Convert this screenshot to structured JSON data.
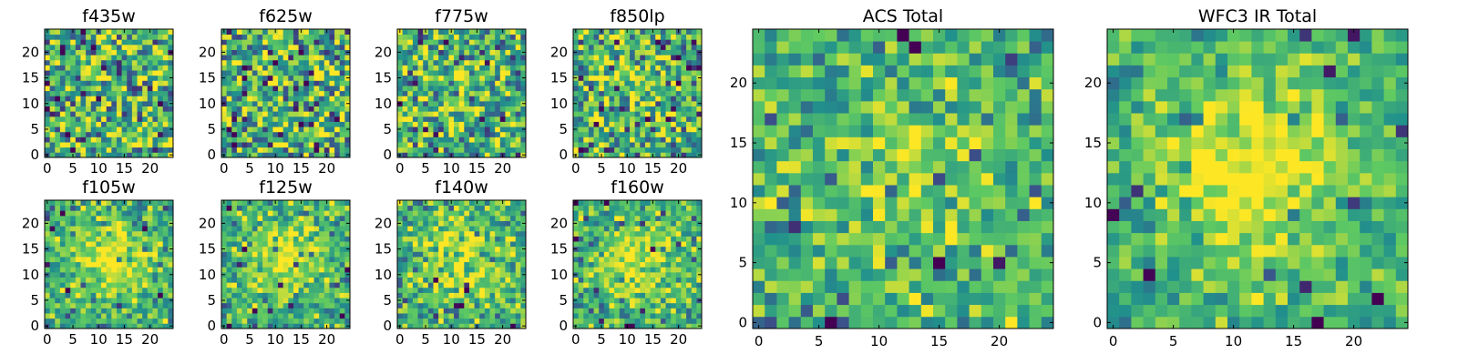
{
  "chart_data": [
    {
      "type": "heatmap",
      "title": "f435w",
      "grid_size": 25,
      "seed": 11,
      "peak": 0.05,
      "noise": 1.0,
      "xticks": [
        "0",
        "5",
        "10",
        "15",
        "20"
      ],
      "yticks": [
        "0",
        "5",
        "10",
        "15",
        "20"
      ],
      "ylim": [
        0,
        24
      ],
      "xlim": [
        0,
        24
      ]
    },
    {
      "type": "heatmap",
      "title": "f625w",
      "grid_size": 25,
      "seed": 23,
      "peak": 0.1,
      "noise": 1.0,
      "xticks": [
        "0",
        "5",
        "10",
        "15",
        "20"
      ],
      "yticks": [
        "0",
        "5",
        "10",
        "15",
        "20"
      ],
      "ylim": [
        0,
        24
      ],
      "xlim": [
        0,
        24
      ]
    },
    {
      "type": "heatmap",
      "title": "f775w",
      "grid_size": 25,
      "seed": 37,
      "peak": 0.35,
      "noise": 0.9,
      "xticks": [
        "0",
        "5",
        "10",
        "15",
        "20"
      ],
      "yticks": [
        "0",
        "5",
        "10",
        "15",
        "20"
      ],
      "ylim": [
        0,
        24
      ],
      "xlim": [
        0,
        24
      ]
    },
    {
      "type": "heatmap",
      "title": "f850lp",
      "grid_size": 25,
      "seed": 41,
      "peak": 0.3,
      "noise": 0.9,
      "xticks": [
        "0",
        "5",
        "10",
        "15",
        "20"
      ],
      "yticks": [
        "0",
        "5",
        "10",
        "15",
        "20"
      ],
      "ylim": [
        0,
        24
      ],
      "xlim": [
        0,
        24
      ]
    },
    {
      "type": "heatmap",
      "title": "f105w",
      "grid_size": 25,
      "seed": 53,
      "peak": 0.9,
      "noise": 0.6,
      "xticks": [
        "0",
        "5",
        "10",
        "15",
        "20"
      ],
      "yticks": [
        "0",
        "5",
        "10",
        "15",
        "20"
      ],
      "ylim": [
        0,
        24
      ],
      "xlim": [
        0,
        24
      ]
    },
    {
      "type": "heatmap",
      "title": "f125w",
      "grid_size": 25,
      "seed": 67,
      "peak": 0.9,
      "noise": 0.6,
      "xticks": [
        "0",
        "5",
        "10",
        "15",
        "20"
      ],
      "yticks": [
        "0",
        "5",
        "10",
        "15",
        "20"
      ],
      "ylim": [
        0,
        24
      ],
      "xlim": [
        0,
        24
      ]
    },
    {
      "type": "heatmap",
      "title": "f140w",
      "grid_size": 25,
      "seed": 71,
      "peak": 0.8,
      "noise": 0.65,
      "xticks": [
        "0",
        "5",
        "10",
        "15",
        "20"
      ],
      "yticks": [
        "0",
        "5",
        "10",
        "15",
        "20"
      ],
      "ylim": [
        0,
        24
      ],
      "xlim": [
        0,
        24
      ]
    },
    {
      "type": "heatmap",
      "title": "f160w",
      "grid_size": 25,
      "seed": 83,
      "peak": 0.9,
      "noise": 0.6,
      "xticks": [
        "0",
        "5",
        "10",
        "15",
        "20"
      ],
      "yticks": [
        "0",
        "5",
        "10",
        "15",
        "20"
      ],
      "ylim": [
        0,
        24
      ],
      "xlim": [
        0,
        24
      ]
    },
    {
      "type": "heatmap",
      "title": "ACS Total",
      "grid_size": 25,
      "seed": 97,
      "peak": 0.45,
      "noise": 0.6,
      "xticks": [
        "0",
        "5",
        "10",
        "15",
        "20"
      ],
      "yticks": [
        "0",
        "5",
        "10",
        "15",
        "20"
      ],
      "ylim": [
        0,
        24
      ],
      "xlim": [
        0,
        24
      ]
    },
    {
      "type": "heatmap",
      "title": "WFC3 IR Total",
      "grid_size": 25,
      "seed": 109,
      "peak": 1.1,
      "noise": 0.45,
      "xticks": [
        "0",
        "5",
        "10",
        "15",
        "20"
      ],
      "yticks": [
        "0",
        "5",
        "10",
        "15",
        "20"
      ],
      "ylim": [
        0,
        24
      ],
      "xlim": [
        0,
        24
      ]
    }
  ],
  "colormap": [
    "#440154",
    "#3b528b",
    "#21918c",
    "#5ec962",
    "#fde725"
  ]
}
